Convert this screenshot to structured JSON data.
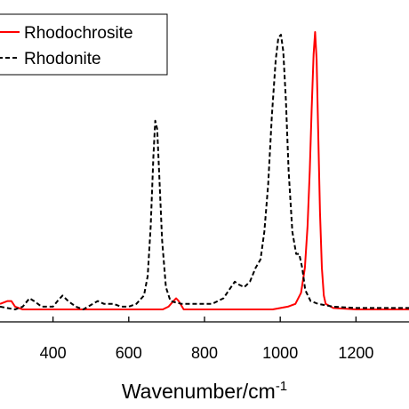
{
  "chart_data": {
    "type": "line",
    "title": "",
    "xlabel": "Wavenumber/cm",
    "xlabel_superscript": "-1",
    "ylabel": "",
    "xlim": [
      260,
      1340
    ],
    "ylim": [
      0,
      1.0
    ],
    "x_ticks": [
      400,
      600,
      800,
      1000,
      1200
    ],
    "grid": false,
    "legend_position": "top-left",
    "series": [
      {
        "name": "Rhodochrosite",
        "color": "#ff0000",
        "style": "solid",
        "points": [
          [
            260,
            0.02
          ],
          [
            280,
            0.03
          ],
          [
            290,
            0.03
          ],
          [
            300,
            0.01
          ],
          [
            320,
            0.0
          ],
          [
            400,
            0.0
          ],
          [
            600,
            0.0
          ],
          [
            690,
            0.0
          ],
          [
            705,
            0.01
          ],
          [
            718,
            0.03
          ],
          [
            725,
            0.04
          ],
          [
            732,
            0.03
          ],
          [
            745,
            0.0
          ],
          [
            800,
            0.0
          ],
          [
            900,
            0.0
          ],
          [
            980,
            0.0
          ],
          [
            1020,
            0.01
          ],
          [
            1040,
            0.02
          ],
          [
            1055,
            0.06
          ],
          [
            1065,
            0.15
          ],
          [
            1072,
            0.3
          ],
          [
            1078,
            0.5
          ],
          [
            1083,
            0.72
          ],
          [
            1088,
            0.92
          ],
          [
            1092,
            1.0
          ],
          [
            1096,
            0.9
          ],
          [
            1100,
            0.65
          ],
          [
            1105,
            0.35
          ],
          [
            1110,
            0.15
          ],
          [
            1115,
            0.05
          ],
          [
            1120,
            0.02
          ],
          [
            1140,
            0.005
          ],
          [
            1200,
            0.0
          ],
          [
            1340,
            0.0
          ]
        ]
      },
      {
        "name": "Rhodonite",
        "color": "#000000",
        "style": "dashed",
        "points": [
          [
            260,
            0.01
          ],
          [
            300,
            0.0
          ],
          [
            320,
            0.01
          ],
          [
            338,
            0.04
          ],
          [
            350,
            0.03
          ],
          [
            370,
            0.01
          ],
          [
            400,
            0.01
          ],
          [
            412,
            0.03
          ],
          [
            425,
            0.05
          ],
          [
            440,
            0.03
          ],
          [
            460,
            0.01
          ],
          [
            480,
            0.0
          ],
          [
            505,
            0.02
          ],
          [
            518,
            0.03
          ],
          [
            535,
            0.02
          ],
          [
            560,
            0.02
          ],
          [
            580,
            0.01
          ],
          [
            600,
            0.01
          ],
          [
            620,
            0.02
          ],
          [
            640,
            0.05
          ],
          [
            650,
            0.12
          ],
          [
            658,
            0.3
          ],
          [
            665,
            0.55
          ],
          [
            670,
            0.68
          ],
          [
            675,
            0.65
          ],
          [
            680,
            0.5
          ],
          [
            688,
            0.25
          ],
          [
            698,
            0.08
          ],
          [
            710,
            0.03
          ],
          [
            740,
            0.02
          ],
          [
            780,
            0.02
          ],
          [
            820,
            0.02
          ],
          [
            850,
            0.04
          ],
          [
            870,
            0.08
          ],
          [
            880,
            0.1
          ],
          [
            890,
            0.09
          ],
          [
            905,
            0.08
          ],
          [
            920,
            0.1
          ],
          [
            935,
            0.15
          ],
          [
            948,
            0.18
          ],
          [
            958,
            0.28
          ],
          [
            968,
            0.45
          ],
          [
            978,
            0.7
          ],
          [
            988,
            0.9
          ],
          [
            995,
            0.98
          ],
          [
            1002,
            0.99
          ],
          [
            1008,
            0.93
          ],
          [
            1015,
            0.75
          ],
          [
            1022,
            0.5
          ],
          [
            1032,
            0.28
          ],
          [
            1042,
            0.2
          ],
          [
            1050,
            0.2
          ],
          [
            1058,
            0.15
          ],
          [
            1066,
            0.07
          ],
          [
            1080,
            0.03
          ],
          [
            1100,
            0.02
          ],
          [
            1140,
            0.01
          ],
          [
            1200,
            0.005
          ],
          [
            1340,
            0.005
          ]
        ]
      }
    ]
  }
}
